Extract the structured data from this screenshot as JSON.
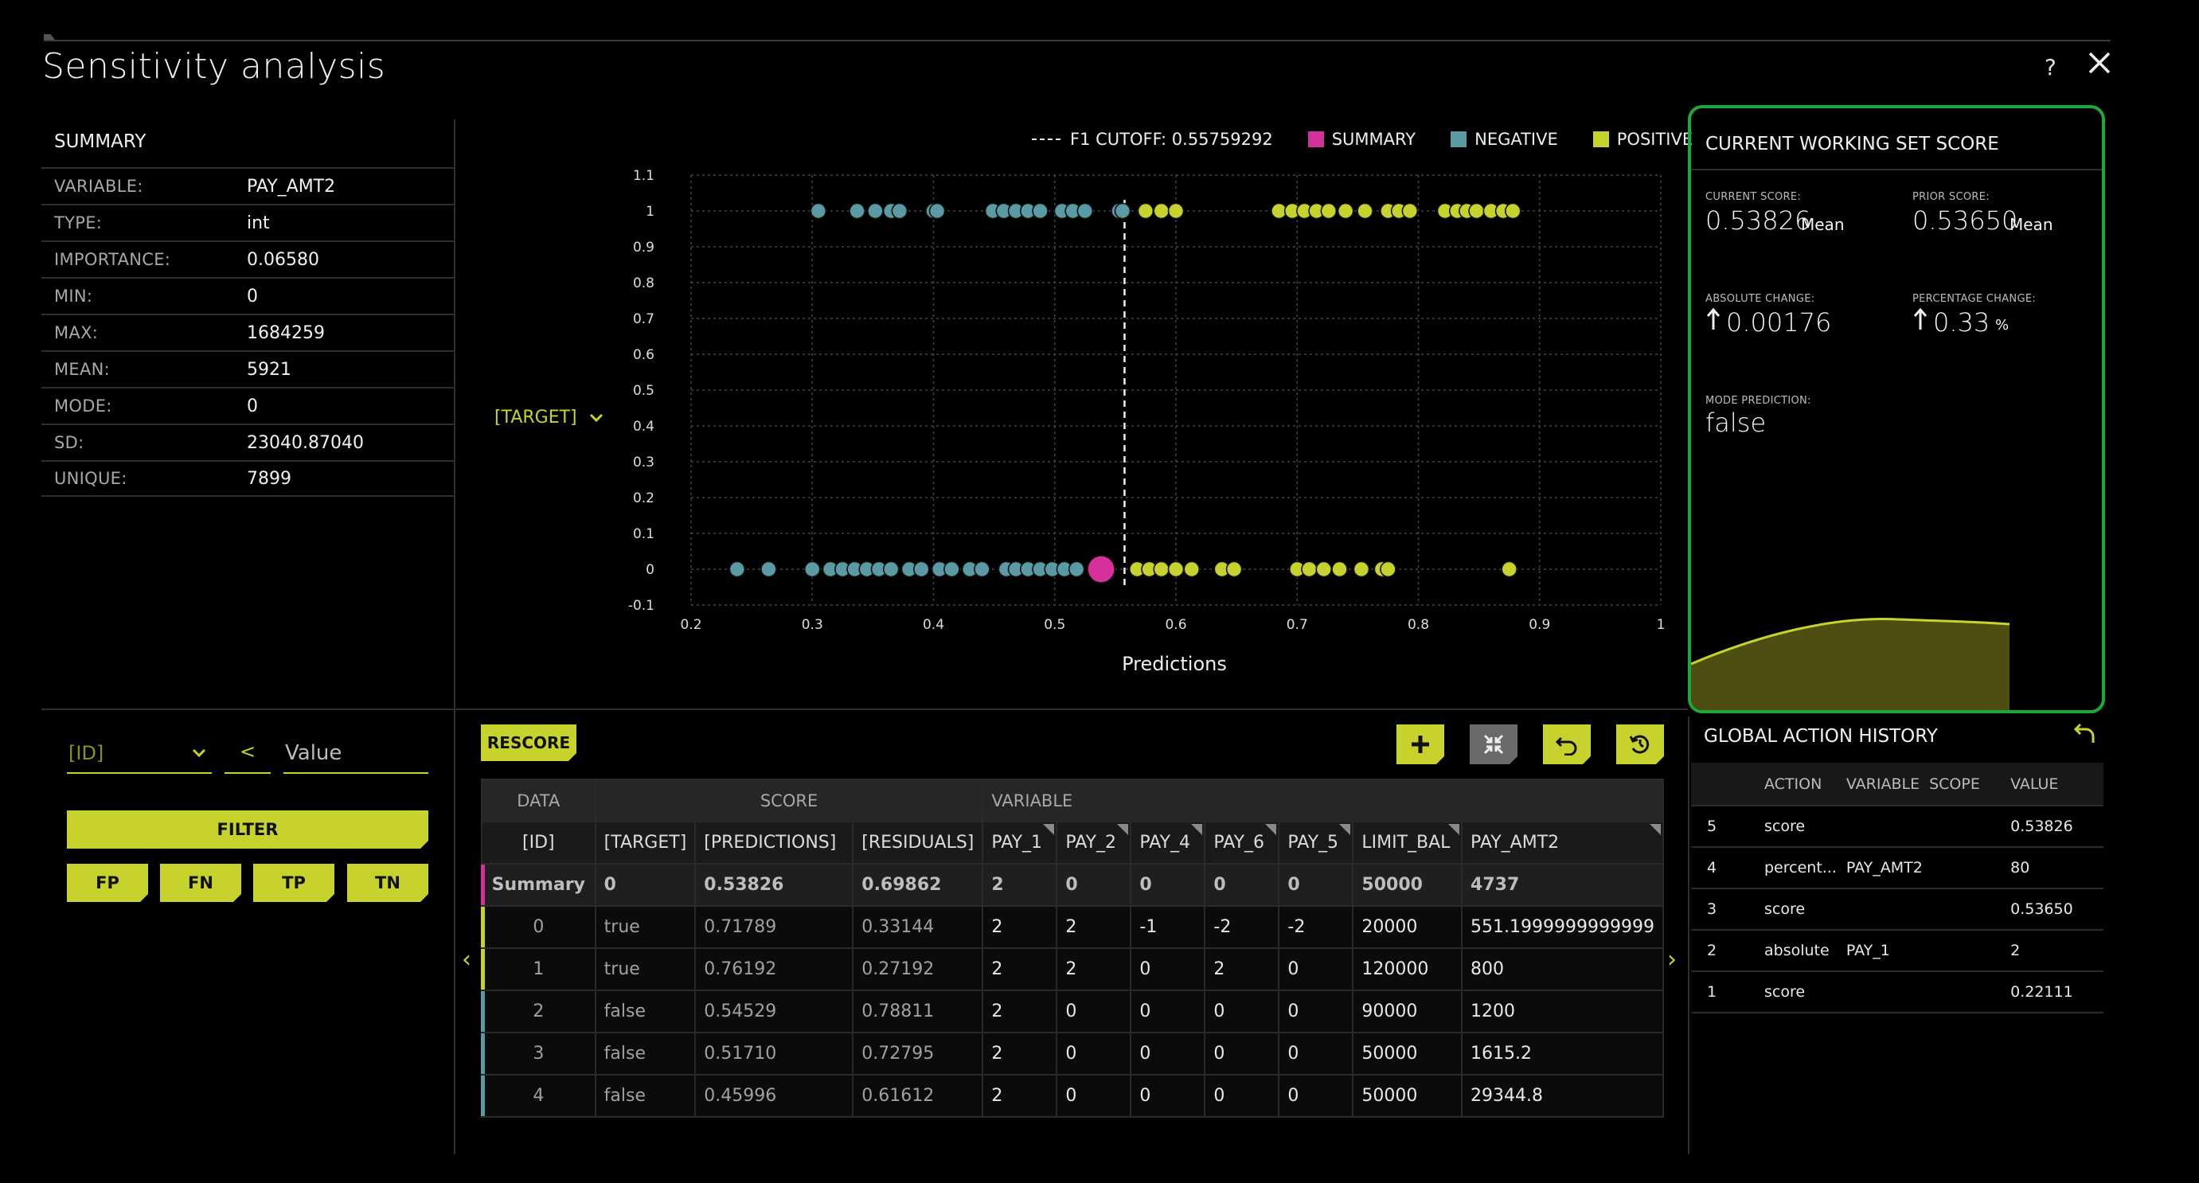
{
  "title": "Sensitivity analysis",
  "help_label": "?",
  "summary": {
    "title": "SUMMARY",
    "rows": [
      {
        "label": "VARIABLE:",
        "value": "PAY_AMT2"
      },
      {
        "label": "TYPE:",
        "value": "int"
      },
      {
        "label": "IMPORTANCE:",
        "value": "0.06580"
      },
      {
        "label": "MIN:",
        "value": "0"
      },
      {
        "label": "MAX:",
        "value": "1684259"
      },
      {
        "label": "MEAN:",
        "value": "5921"
      },
      {
        "label": "MODE:",
        "value": "0"
      },
      {
        "label": "SD:",
        "value": "23040.87040"
      },
      {
        "label": "UNIQUE:",
        "value": "7899"
      }
    ]
  },
  "legend": {
    "cutoff_label": "F1 CUTOFF: 0.55759292",
    "summary_label": "SUMMARY",
    "negative_label": "NEGATIVE",
    "positive_label": "POSITIVE"
  },
  "colors": {
    "summary": "#d6309a",
    "negative": "#5a9aa4",
    "positive": "#c8d22c",
    "accent": "#c8d22c",
    "frame": "#1fa83a"
  },
  "target_dropdown": "[TARGET]",
  "chart_data": {
    "type": "scatter",
    "xlabel": "Predictions",
    "ylabel": "",
    "xlim": [
      0.2,
      1
    ],
    "ylim": [
      -0.1,
      1.1
    ],
    "xticks": [
      "0.2",
      "0.3",
      "0.4",
      "0.5",
      "0.6",
      "0.7",
      "0.8",
      "0.9",
      "1"
    ],
    "yticks": [
      "-0.1",
      "0",
      "0.1",
      "0.2",
      "0.3",
      "0.4",
      "0.5",
      "0.6",
      "0.7",
      "0.8",
      "0.9",
      "1",
      "1.1"
    ],
    "grid": true,
    "cutoff": 0.5576,
    "summary_point": {
      "x": 0.5383,
      "y": 0
    },
    "series": [
      {
        "name": "NEGATIVE",
        "points": [
          [
            0.305,
            1
          ],
          [
            0.337,
            1
          ],
          [
            0.352,
            1
          ],
          [
            0.365,
            1
          ],
          [
            0.372,
            1
          ],
          [
            0.4,
            1
          ],
          [
            0.403,
            1
          ],
          [
            0.449,
            1
          ],
          [
            0.458,
            1
          ],
          [
            0.468,
            1
          ],
          [
            0.478,
            1
          ],
          [
            0.488,
            1
          ],
          [
            0.506,
            1
          ],
          [
            0.515,
            1
          ],
          [
            0.525,
            1
          ],
          [
            0.553,
            1
          ],
          [
            0.556,
            1
          ],
          [
            0.238,
            0
          ],
          [
            0.264,
            0
          ],
          [
            0.3,
            0
          ],
          [
            0.315,
            0
          ],
          [
            0.325,
            0
          ],
          [
            0.335,
            0
          ],
          [
            0.345,
            0
          ],
          [
            0.355,
            0
          ],
          [
            0.365,
            0
          ],
          [
            0.38,
            0
          ],
          [
            0.39,
            0
          ],
          [
            0.405,
            0
          ],
          [
            0.415,
            0
          ],
          [
            0.43,
            0
          ],
          [
            0.44,
            0
          ],
          [
            0.46,
            0
          ],
          [
            0.468,
            0
          ],
          [
            0.478,
            0
          ],
          [
            0.488,
            0
          ],
          [
            0.498,
            0
          ],
          [
            0.508,
            0
          ],
          [
            0.518,
            0
          ]
        ]
      },
      {
        "name": "POSITIVE",
        "points": [
          [
            0.575,
            1
          ],
          [
            0.588,
            1
          ],
          [
            0.6,
            1
          ],
          [
            0.685,
            1
          ],
          [
            0.696,
            1
          ],
          [
            0.706,
            1
          ],
          [
            0.716,
            1
          ],
          [
            0.726,
            1
          ],
          [
            0.74,
            1
          ],
          [
            0.756,
            1
          ],
          [
            0.775,
            1
          ],
          [
            0.784,
            1
          ],
          [
            0.793,
            1
          ],
          [
            0.822,
            1
          ],
          [
            0.832,
            1
          ],
          [
            0.84,
            1
          ],
          [
            0.848,
            1
          ],
          [
            0.86,
            1
          ],
          [
            0.87,
            1
          ],
          [
            0.878,
            1
          ],
          [
            0.568,
            0
          ],
          [
            0.578,
            0
          ],
          [
            0.588,
            0
          ],
          [
            0.6,
            0
          ],
          [
            0.613,
            0
          ],
          [
            0.638,
            0
          ],
          [
            0.648,
            0
          ],
          [
            0.7,
            0
          ],
          [
            0.71,
            0
          ],
          [
            0.722,
            0
          ],
          [
            0.735,
            0
          ],
          [
            0.753,
            0
          ],
          [
            0.77,
            0
          ],
          [
            0.775,
            0
          ],
          [
            0.875,
            0
          ]
        ]
      }
    ]
  },
  "working_set": {
    "title": "CURRENT WORKING SET SCORE",
    "current_label": "CURRENT SCORE:",
    "current_value": "0.53826",
    "current_unit": "Mean",
    "prior_label": "PRIOR SCORE:",
    "prior_value": "0.53650",
    "prior_unit": "Mean",
    "abs_label": "ABSOLUTE CHANGE:",
    "abs_value": "0.00176",
    "pct_label": "PERCENTAGE CHANGE:",
    "pct_value": "0.33",
    "pct_unit": "%",
    "mode_label": "MODE PREDICTION:",
    "mode_value": "false"
  },
  "filter": {
    "field": "[ID]",
    "operator": "<",
    "value_placeholder": "Value",
    "filter_label": "FILTER",
    "fp": "FP",
    "fn": "FN",
    "tp": "TP",
    "tn": "TN"
  },
  "rescore_label": "RESCORE",
  "table": {
    "groups": [
      "DATA",
      "SCORE",
      "VARIABLE"
    ],
    "headers": [
      "[ID]",
      "[TARGET]",
      "[PREDICTIONS]",
      "[RESIDUALS]",
      "PAY_1",
      "PAY_2",
      "PAY_4",
      "PAY_6",
      "PAY_5",
      "LIMIT_BAL",
      "PAY_AMT2"
    ],
    "summary": [
      "Summary",
      "0",
      "0.53826",
      "0.69862",
      "2",
      "0",
      "0",
      "0",
      "0",
      "50000",
      "4737"
    ],
    "rows": [
      [
        "0",
        "true",
        "0.71789",
        "0.33144",
        "2",
        "2",
        "-1",
        "-2",
        "-2",
        "20000",
        "551.1999999999999"
      ],
      [
        "1",
        "true",
        "0.76192",
        "0.27192",
        "2",
        "2",
        "0",
        "2",
        "0",
        "120000",
        "800"
      ],
      [
        "2",
        "false",
        "0.54529",
        "0.78811",
        "2",
        "0",
        "0",
        "0",
        "0",
        "90000",
        "1200"
      ],
      [
        "3",
        "false",
        "0.51710",
        "0.72795",
        "2",
        "0",
        "0",
        "0",
        "0",
        "50000",
        "1615.2"
      ],
      [
        "4",
        "false",
        "0.45996",
        "0.61612",
        "2",
        "0",
        "0",
        "0",
        "0",
        "50000",
        "29344.8"
      ]
    ]
  },
  "action_history": {
    "title": "GLOBAL ACTION HISTORY",
    "headers": [
      "ACTION",
      "VARIABLE",
      "SCOPE",
      "VALUE"
    ],
    "rows": [
      {
        "n": "5",
        "action": "score",
        "variable": "",
        "value": "0.53826"
      },
      {
        "n": "4",
        "action": "percent...",
        "variable": "PAY_AMT2",
        "value": "80"
      },
      {
        "n": "3",
        "action": "score",
        "variable": "",
        "value": "0.53650"
      },
      {
        "n": "2",
        "action": "absolute",
        "variable": "PAY_1",
        "value": "2"
      },
      {
        "n": "1",
        "action": "score",
        "variable": "",
        "value": "0.22111"
      }
    ]
  }
}
